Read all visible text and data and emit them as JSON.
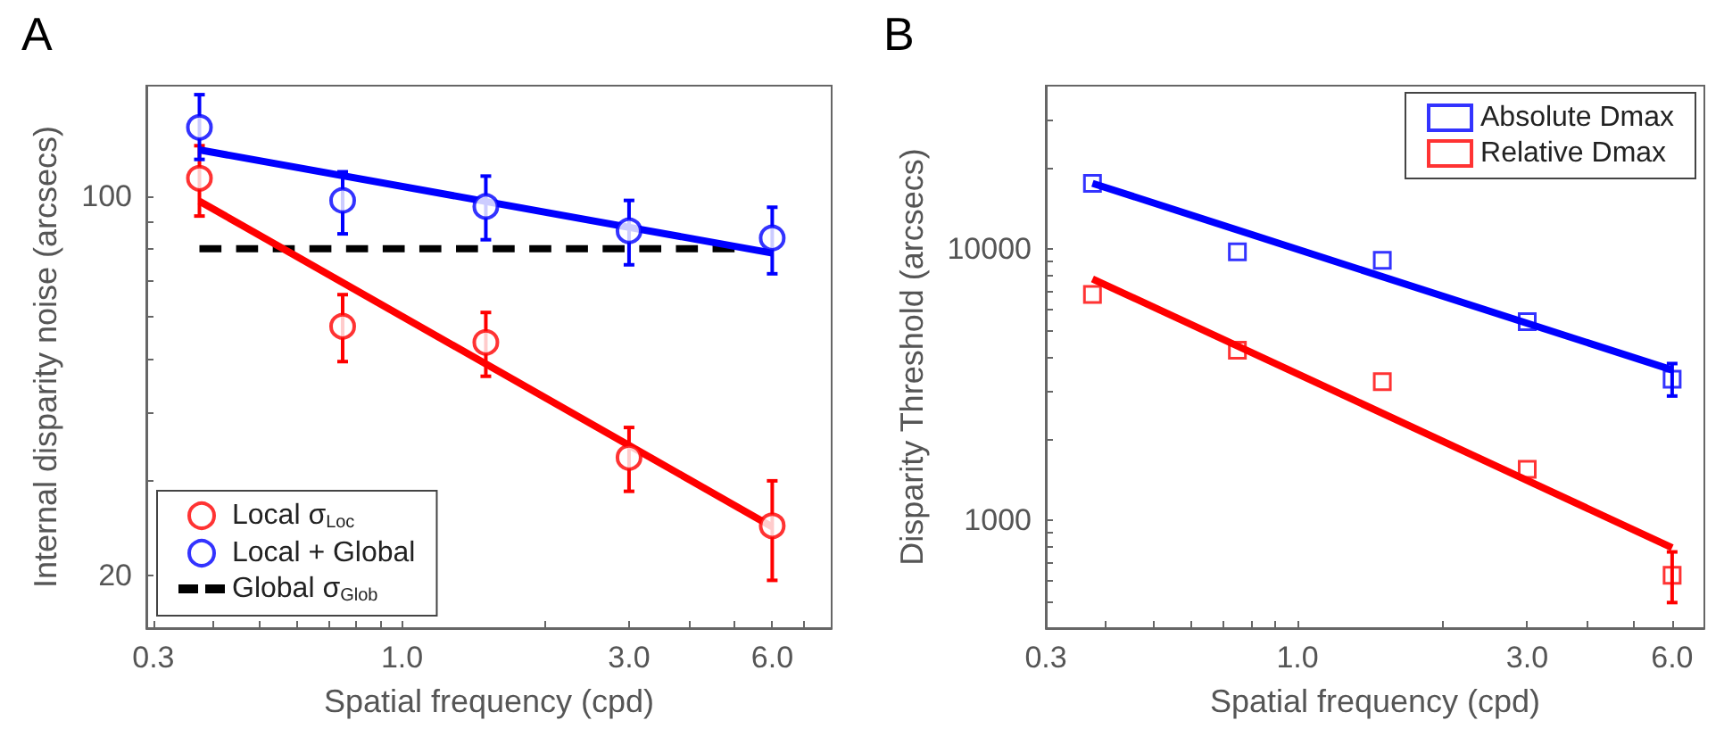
{
  "chart_data": [
    {
      "type": "scatter",
      "annotations": [
        "A"
      ],
      "xlabel": "Spatial frequency (cpd)",
      "ylabel": "Internal disparity noise (arcsecs)",
      "log": "xy",
      "marker": "circle",
      "legend": "bottom left",
      "grid": false,
      "x": [
        0.375,
        0.75,
        1.5,
        3,
        6
      ],
      "xlim": [
        0.29,
        8
      ],
      "xticks": [
        0.3,
        {
          "value": 0.4,
          "label": null
        },
        {
          "value": 0.5,
          "label": null
        },
        {
          "value": 0.6,
          "label": null
        },
        {
          "value": 0.7,
          "label": null
        },
        {
          "value": 0.8,
          "label": null
        },
        {
          "value": 0.9,
          "label": null
        },
        {
          "value": 1,
          "label": "1.0"
        },
        {
          "value": 2,
          "label": null
        },
        {
          "value": 3,
          "label": "3.0"
        },
        {
          "value": 4,
          "label": null
        },
        {
          "value": 5,
          "label": null
        },
        {
          "value": 6,
          "label": "6.0"
        },
        {
          "value": 7,
          "label": null
        }
      ],
      "ylim": [
        16,
        160
      ],
      "yticks": [
        20,
        {
          "value": 30,
          "label": null
        },
        {
          "value": 40,
          "label": null
        },
        {
          "value": 50,
          "label": null
        },
        {
          "value": 60,
          "label": null
        },
        {
          "value": 70,
          "label": null
        },
        {
          "value": 80,
          "label": null
        },
        {
          "value": 90,
          "label": null
        },
        100
      ],
      "series": [
        {
          "name": "Local σ$_{Loc}$",
          "color": "#ff0000",
          "values": [
            108,
            57.6,
            53.8,
            33,
            24.7
          ],
          "errors": [
            [
              92,
              124
            ],
            [
              49.6,
              65.9
            ],
            [
              46.6,
              61.1
            ],
            [
              28.6,
              37.5
            ],
            [
              19.6,
              29.9
            ]
          ]
        },
        {
          "name": "Local + Global",
          "color": "#0000ff",
          "values": [
            134,
            98.3,
            95.8,
            86.4,
            83.8
          ],
          "errors": [
            [
              117,
              154
            ],
            [
              85.3,
              111
            ],
            [
              83.2,
              109
            ],
            [
              74.8,
              98.3
            ],
            [
              72,
              95.5
            ]
          ]
        },
        {
          "name": "Global σ$_{Glob}$",
          "type": "line",
          "color": "#000000",
          "line_style": "dashed",
          "marker": "none",
          "x": [
            0.375,
            5
          ],
          "values": [
            80.1,
            80.1
          ]
        },
        {
          "type": "line",
          "color": "#ff0000",
          "marker": "none",
          "x": [
            0.375,
            6
          ],
          "values": [
            98,
            24.6
          ]
        },
        {
          "type": "line",
          "color": "#0000ff",
          "marker": "none",
          "x": [
            0.375,
            6
          ],
          "values": [
            121.8,
            78.6
          ]
        }
      ]
    },
    {
      "type": "scatter",
      "annotations": [
        "B"
      ],
      "xlabel": "Spatial frequency (cpd)",
      "ylabel": "Disparity Threshold (arcsecs)",
      "log": "xy",
      "marker": "square",
      "legend": "top right",
      "grid": false,
      "x": [
        0.375,
        0.75,
        1.5,
        3,
        6
      ],
      "xlim": [
        0.3,
        7
      ],
      "xticks": [
        0.3,
        {
          "value": 0.4,
          "label": null
        },
        {
          "value": 0.5,
          "label": null
        },
        {
          "value": 0.6,
          "label": null
        },
        {
          "value": 0.7,
          "label": null
        },
        {
          "value": 0.8,
          "label": null
        },
        {
          "value": 0.9,
          "label": null
        },
        {
          "value": 1,
          "label": "1.0"
        },
        {
          "value": 2,
          "label": null
        },
        {
          "value": 3,
          "label": "3.0"
        },
        {
          "value": 4,
          "label": null
        },
        {
          "value": 5,
          "label": null
        },
        {
          "value": 6,
          "label": "6.0"
        }
      ],
      "ylim": [
        400,
        40000
      ],
      "yticks": [
        {
          "value": 500,
          "label": null
        },
        {
          "value": 600,
          "label": null
        },
        {
          "value": 700,
          "label": null
        },
        {
          "value": 800,
          "label": null
        },
        {
          "value": 900,
          "label": null
        },
        1000,
        {
          "value": 2000,
          "label": null
        },
        {
          "value": 3000,
          "label": null
        },
        {
          "value": 4000,
          "label": null
        },
        {
          "value": 5000,
          "label": null
        },
        {
          "value": 6000,
          "label": null
        },
        {
          "value": 7000,
          "label": null
        },
        {
          "value": 8000,
          "label": null
        },
        {
          "value": 9000,
          "label": null
        },
        10000,
        {
          "value": 20000,
          "label": null
        },
        {
          "value": 30000,
          "label": null
        }
      ],
      "series": [
        {
          "name": "Absolute Dmax",
          "color": "#0000ff",
          "values": [
            17460,
            9750,
            9080,
            5390,
            3310
          ],
          "errors": [
            null,
            null,
            null,
            null,
            [
              2870,
              3780
            ]
          ]
        },
        {
          "name": "Relative Dmax",
          "color": "#ff0000",
          "values": [
            6800,
            4230,
            3240,
            1540,
            627
          ],
          "errors": [
            null,
            null,
            null,
            null,
            [
              497,
              764
            ]
          ]
        },
        {
          "type": "line",
          "color": "#0000ff",
          "marker": "none",
          "x": [
            0.375,
            6
          ],
          "values": [
            17460,
            3580
          ]
        },
        {
          "type": "line",
          "color": "#ff0000",
          "marker": "none",
          "x": [
            0.375,
            6
          ],
          "values": [
            7760,
            792
          ]
        }
      ]
    }
  ]
}
